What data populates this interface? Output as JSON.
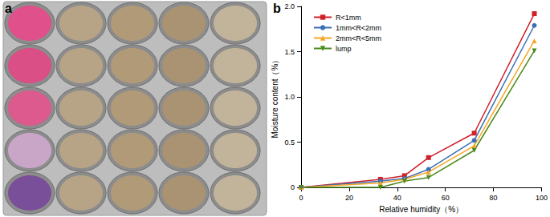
{
  "chart_data": {
    "type": "line",
    "annotations": [
      "a",
      "b"
    ],
    "x_label": "Relative humidity（%）",
    "y_label": "Moisture content（%）",
    "x": [
      0,
      33,
      43,
      53,
      72,
      97
    ],
    "series": [
      {
        "name": "R<1mm",
        "color": "#d0202a",
        "marker": "square",
        "values": [
          0,
          0.09,
          0.13,
          0.33,
          0.6,
          1.92
        ]
      },
      {
        "name": "1mm<R<2mm",
        "color": "#3b6fb6",
        "marker": "circle",
        "values": [
          0,
          0.07,
          0.1,
          0.2,
          0.52,
          1.79
        ]
      },
      {
        "name": "2mm<R<5mm",
        "color": "#f5a623",
        "marker": "triangle",
        "values": [
          0,
          0.05,
          0.09,
          0.17,
          0.46,
          1.62
        ]
      },
      {
        "name": "lump",
        "color": "#4b8a1c",
        "marker": "triangle-down",
        "values": [
          0,
          0.0,
          0.07,
          0.11,
          0.41,
          1.51
        ]
      }
    ],
    "xlim": [
      0,
      100
    ],
    "xticks": [
      0,
      20,
      40,
      60,
      80,
      100
    ],
    "ylim": [
      0,
      2.0
    ],
    "yticks": [
      0,
      0.5,
      {
        "value": 1.0,
        "label": "1.0"
      },
      1.5,
      {
        "value": 2.0,
        "label": "2.0"
      }
    ],
    "grid": false,
    "legend": "upper left",
    "line_style": "solid"
  }
}
